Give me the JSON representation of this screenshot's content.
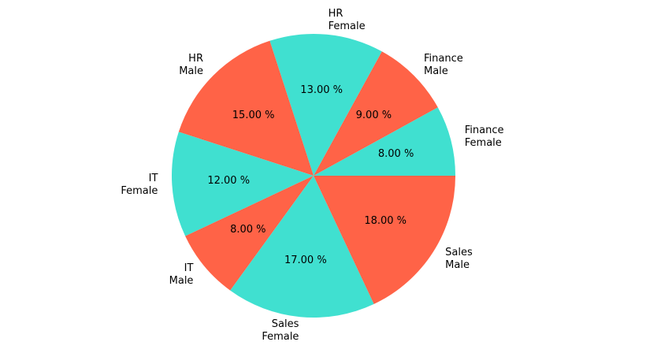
{
  "chart_data": {
    "type": "pie",
    "categories": [
      "Finance\nFemale",
      "Finance\nMale",
      "HR\nFemale",
      "HR\nMale",
      "IT\nFemale",
      "IT\nMale",
      "Sales\nFemale",
      "Sales\nMale"
    ],
    "values": [
      8,
      9,
      13,
      15,
      12,
      8,
      17,
      18
    ],
    "value_labels": [
      "8.00 %",
      "9.00 %",
      "13.00 %",
      "15.00 %",
      "12.00 %",
      "8.00 %",
      "17.00 %",
      "18.00 %"
    ],
    "colors": [
      "#40e0d0",
      "#ff6347",
      "#40e0d0",
      "#ff6347",
      "#40e0d0",
      "#ff6347",
      "#40e0d0",
      "#ff6347"
    ]
  }
}
